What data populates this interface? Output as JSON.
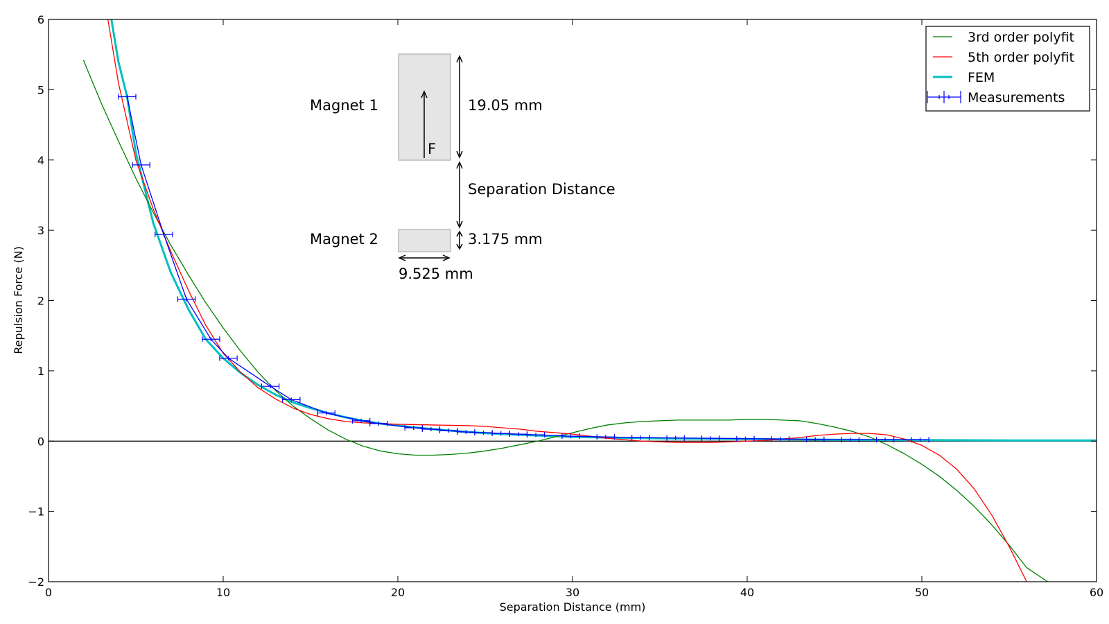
{
  "chart_data": {
    "type": "line",
    "xlabel": "Separation Distance (mm)",
    "ylabel": "Repulsion Force (N)",
    "xlim": [
      0,
      60
    ],
    "ylim": [
      -2,
      6
    ],
    "xticks": [
      0,
      10,
      20,
      30,
      40,
      50,
      60
    ],
    "yticks": [
      -2,
      -1,
      0,
      1,
      2,
      3,
      4,
      5,
      6
    ],
    "xtick_labels": [
      "0",
      "10",
      "20",
      "30",
      "40",
      "50",
      "60"
    ],
    "ytick_labels": [
      "−2",
      "−1",
      "0",
      "1",
      "2",
      "3",
      "4",
      "5",
      "6"
    ],
    "zero_line": true,
    "grid": false,
    "legend_position": "top-right",
    "series": [
      {
        "name": "3rd order polyfit",
        "color": "#008000",
        "style": "line",
        "x": [
          2,
          3,
          4,
          5,
          6,
          7,
          8,
          9,
          10,
          11,
          12,
          13,
          14,
          15,
          16,
          17,
          18,
          19,
          20,
          21,
          22,
          23,
          24,
          25,
          26,
          27,
          28,
          29,
          30,
          31,
          32,
          33,
          34,
          35,
          36,
          37,
          38,
          39,
          40,
          41,
          42,
          43,
          44,
          45,
          46,
          47,
          48,
          49,
          50,
          51,
          52,
          53,
          54,
          55,
          56,
          57.2
        ],
        "y": [
          5.42,
          4.82,
          4.27,
          3.74,
          3.25,
          2.79,
          2.37,
          1.97,
          1.61,
          1.28,
          0.98,
          0.72,
          0.5,
          0.32,
          0.16,
          0.03,
          -0.07,
          -0.14,
          -0.18,
          -0.2,
          -0.2,
          -0.19,
          -0.17,
          -0.14,
          -0.1,
          -0.05,
          0.0,
          0.06,
          0.12,
          0.18,
          0.23,
          0.26,
          0.28,
          0.29,
          0.3,
          0.3,
          0.3,
          0.3,
          0.31,
          0.31,
          0.3,
          0.29,
          0.25,
          0.2,
          0.14,
          0.06,
          -0.05,
          -0.18,
          -0.33,
          -0.5,
          -0.7,
          -0.93,
          -1.19,
          -1.48,
          -1.8,
          -2.0
        ]
      },
      {
        "name": "5th order polyfit",
        "color": "#ff0000",
        "style": "line",
        "x": [
          3.4,
          4,
          5,
          6,
          7,
          8,
          9,
          10,
          11,
          12,
          13,
          14,
          15,
          16,
          17,
          18,
          19,
          20,
          21,
          22,
          23,
          24,
          25,
          26,
          27,
          28,
          29,
          30,
          31,
          32,
          33,
          34,
          35,
          36,
          37,
          38,
          39,
          40,
          41,
          42,
          43,
          44,
          45,
          46,
          47,
          48,
          49,
          50,
          51,
          52,
          53,
          54,
          55,
          56
        ],
        "y": [
          6.0,
          5.1,
          4.0,
          3.3,
          2.7,
          2.15,
          1.65,
          1.25,
          0.98,
          0.76,
          0.6,
          0.47,
          0.38,
          0.32,
          0.28,
          0.26,
          0.25,
          0.24,
          0.235,
          0.23,
          0.225,
          0.22,
          0.21,
          0.19,
          0.17,
          0.14,
          0.12,
          0.1,
          0.07,
          0.04,
          0.02,
          0.0,
          -0.01,
          -0.02,
          -0.02,
          -0.02,
          -0.01,
          0.0,
          0.01,
          0.03,
          0.05,
          0.08,
          0.1,
          0.11,
          0.11,
          0.09,
          0.03,
          -0.06,
          -0.2,
          -0.4,
          -0.68,
          -1.05,
          -1.5,
          -2.0
        ]
      },
      {
        "name": "FEM",
        "color": "#00bfbf",
        "style": "thick-line",
        "x": [
          3.6,
          4.0,
          4.5,
          5.0,
          5.5,
          6.0,
          7.0,
          8.0,
          9.0,
          10.0,
          11.0,
          12.0,
          13.0,
          14.0,
          15.0,
          16.0,
          17.0,
          18.0,
          19.0,
          20.0,
          22.0,
          24.0,
          26.0,
          28.0,
          30.0,
          32.0,
          35.0,
          40.0,
          45.0,
          50.0,
          55.0,
          60.0
        ],
        "y": [
          6.0,
          5.4,
          4.9,
          4.1,
          3.6,
          3.1,
          2.4,
          1.88,
          1.45,
          1.18,
          0.97,
          0.8,
          0.66,
          0.55,
          0.47,
          0.4,
          0.34,
          0.29,
          0.25,
          0.22,
          0.17,
          0.13,
          0.1,
          0.08,
          0.06,
          0.05,
          0.04,
          0.03,
          0.02,
          0.015,
          0.01,
          0.01
        ]
      },
      {
        "name": "Measurements",
        "color": "#0000ff",
        "style": "errorbar",
        "x": [
          4.5,
          5.3,
          6.6,
          7.9,
          9.3,
          10.3,
          12.7,
          13.9,
          15.9,
          17.9,
          18.9,
          20.9,
          21.9,
          22.9,
          23.9,
          24.9,
          25.9,
          26.9,
          27.9,
          29.9,
          31.9,
          33.9,
          35.9,
          37.9,
          39.9,
          41.9,
          43.9,
          45.9,
          47.9,
          49.9
        ],
        "y": [
          4.9,
          3.93,
          2.94,
          2.02,
          1.45,
          1.18,
          0.78,
          0.59,
          0.4,
          0.29,
          0.25,
          0.19,
          0.17,
          0.15,
          0.13,
          0.12,
          0.11,
          0.1,
          0.09,
          0.07,
          0.06,
          0.05,
          0.045,
          0.04,
          0.035,
          0.03,
          0.025,
          0.02,
          0.02,
          0.02
        ],
        "xerr": [
          0.5,
          0.5,
          0.5,
          0.5,
          0.5,
          0.5,
          0.5,
          0.5,
          0.5,
          0.5,
          0.5,
          0.5,
          0.5,
          0.5,
          0.5,
          0.5,
          0.5,
          0.5,
          0.5,
          0.5,
          0.5,
          0.5,
          0.5,
          0.5,
          0.5,
          0.5,
          0.5,
          0.5,
          0.5,
          0.5
        ],
        "yerr": [
          0.03,
          0.03,
          0.03,
          0.03,
          0.03,
          0.03,
          0.03,
          0.03,
          0.03,
          0.03,
          0.03,
          0.03,
          0.03,
          0.03,
          0.03,
          0.03,
          0.03,
          0.03,
          0.03,
          0.03,
          0.03,
          0.03,
          0.03,
          0.03,
          0.03,
          0.03,
          0.03,
          0.03,
          0.03,
          0.03
        ]
      }
    ],
    "inset": {
      "magnet1_label": "Magnet 1",
      "magnet2_label": "Magnet 2",
      "force_label": "F",
      "height1_label": "19.05 mm",
      "separation_label": "Separation Distance",
      "height2_label": "3.175 mm",
      "width_label": "9.525 mm",
      "magnet_fill": "#e5e5e5"
    }
  }
}
